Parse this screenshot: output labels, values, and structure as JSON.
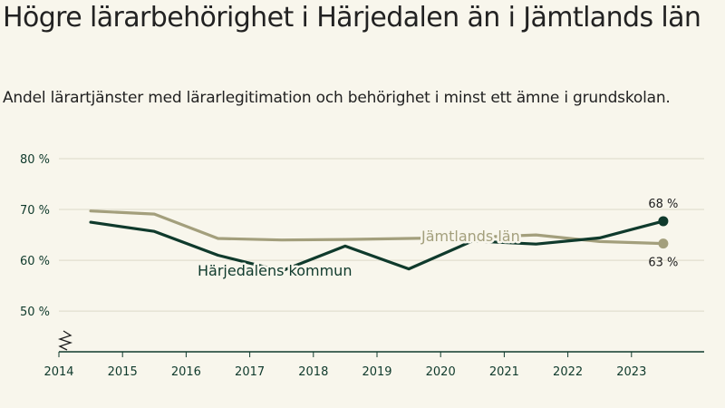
{
  "header": {
    "title": "Högre lärarbehörighet i Härjedalen än i Jämtlands län",
    "subtitle": "Andel lärartjänster med lärarlegitimation och behörighet i minst ett ämne i grundskolan."
  },
  "chart_data": {
    "type": "line",
    "title": "Högre lärarbehörighet i Härjedalen än i Jämtlands län",
    "subtitle": "Andel lärartjänster med lärarlegitimation och behörighet i minst ett ämne i grundskolan.",
    "xlabel": "",
    "ylabel": "",
    "x_ticks": [
      "2014",
      "2015",
      "2016",
      "2017",
      "2018",
      "2019",
      "2020",
      "2021",
      "2022",
      "2023"
    ],
    "y_ticks": [
      "80 %",
      "70 %",
      "60 %",
      "50 %"
    ],
    "y_tick_values": [
      80,
      70,
      60,
      50
    ],
    "ylim": [
      42,
      80
    ],
    "xlim": [
      2014,
      2024
    ],
    "axis_break": true,
    "grid": true,
    "x": [
      2014.5,
      2015.5,
      2016.5,
      2017.5,
      2018.5,
      2019.5,
      2020.5,
      2021.5,
      2022.5,
      2023.5
    ],
    "series": [
      {
        "name": "Jämtlands län",
        "color": "#a39f7c",
        "values": [
          69.7,
          69.1,
          64.3,
          64.0,
          64.1,
          64.3,
          64.5,
          65.0,
          63.7,
          63.3
        ],
        "end_label": "63 %"
      },
      {
        "name": "Härjedalens kommun",
        "color": "#0f3a2c",
        "values": [
          67.5,
          65.7,
          61.0,
          57.9,
          62.8,
          58.3,
          63.8,
          63.2,
          64.4,
          67.7
        ],
        "end_label": "68 %"
      }
    ]
  }
}
